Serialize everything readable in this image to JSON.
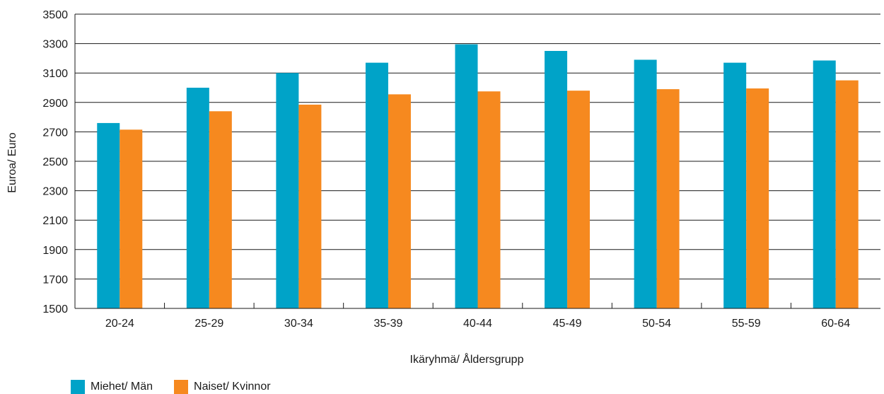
{
  "chart_data": {
    "type": "bar",
    "categories": [
      "20-24",
      "25-29",
      "30-34",
      "35-39",
      "40-44",
      "45-49",
      "50-54",
      "55-59",
      "60-64"
    ],
    "series": [
      {
        "name": "Miehet/ Män",
        "color": "#00a3c8",
        "values": [
          2760,
          3000,
          3100,
          3170,
          3295,
          3250,
          3190,
          3170,
          3185
        ]
      },
      {
        "name": "Naiset/ Kvinnor",
        "color": "#f6891f",
        "values": [
          2715,
          2840,
          2885,
          2955,
          2975,
          2980,
          2990,
          2995,
          3050
        ]
      }
    ],
    "xlabel": "Ikäryhmä/ Åldersgrupp",
    "ylabel": "Euroa/ Euro",
    "ylim": [
      1500,
      3500
    ],
    "yticks": [
      1500,
      1700,
      1900,
      2100,
      2300,
      2500,
      2700,
      2900,
      3100,
      3300,
      3500
    ],
    "grid": true,
    "legend_position": "bottom-left"
  }
}
